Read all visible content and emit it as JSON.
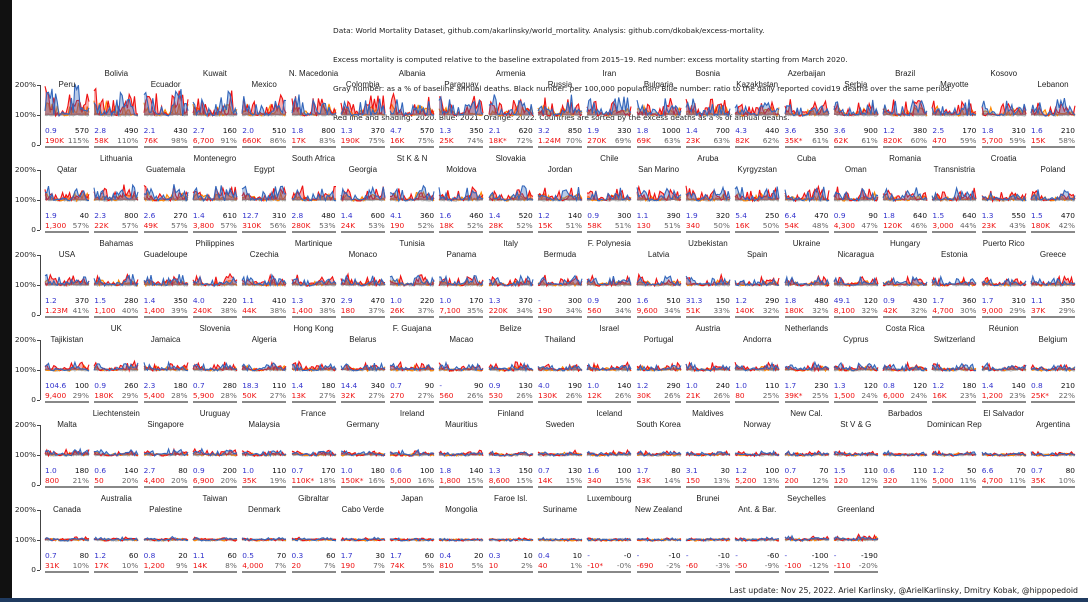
{
  "header": {
    "lines": [
      "Data: World Mortality Dataset, github.com/akarlinsky/world_mortality. Analysis: github.com/dkobak/excess-mortality.",
      "Excess mortality is computed relative to the baseline extrapolated from 2015–19. Red number: excess mortality starting from March 2020.",
      "Gray number: as a % of baseline annual deaths. Black number: per 100,000 population. Blue number: ratio to the daily reported covid19 deaths over the same period.",
      "Red line and shading: 2020. Blue: 2021. Orange: 2022. Countries are sorted by the excess deaths as a % of annual deaths."
    ]
  },
  "footer": "Last update: Nov 25, 2022. Ariel Karlinsky, @ArielKarlinsky, Dmitry Kobak, @hippopedoid",
  "colors": {
    "2020": "#ee1111",
    "2021": "#3366bb",
    "2022": "#ff8800",
    "baseline_years": "#aaaaaa",
    "blue_number": "#3333cc",
    "red_number": "#ee1111"
  },
  "chart_data": {
    "type": "line",
    "yticks": [
      "200%",
      "100%",
      "0"
    ],
    "ylim": [
      0,
      2
    ],
    "series_legend": {
      "red": "2020",
      "blue": "2021",
      "orange": "2022"
    },
    "grid": false,
    "countries": [
      {
        "name": "Peru",
        "blue": "0.9",
        "black": "570",
        "red": "190K",
        "gray": "115%"
      },
      {
        "name": "Bolivia",
        "blue": "2.8",
        "black": "490",
        "red": "58K",
        "gray": "110%"
      },
      {
        "name": "Ecuador",
        "blue": "2.1",
        "black": "430",
        "red": "76K",
        "gray": "98%"
      },
      {
        "name": "Kuwait",
        "blue": "2.7",
        "black": "160",
        "red": "6,700",
        "gray": "91%"
      },
      {
        "name": "Mexico",
        "blue": "2.0",
        "black": "510",
        "red": "660K",
        "gray": "86%"
      },
      {
        "name": "N. Macedonia",
        "blue": "1.8",
        "black": "800",
        "red": "17K",
        "gray": "83%"
      },
      {
        "name": "Colombia",
        "blue": "1.3",
        "black": "370",
        "red": "190K",
        "gray": "75%"
      },
      {
        "name": "Albania",
        "blue": "4.7",
        "black": "570",
        "red": "16K",
        "gray": "75%"
      },
      {
        "name": "Paraguay",
        "blue": "1.3",
        "black": "350",
        "red": "25K",
        "gray": "74%"
      },
      {
        "name": "Armenia",
        "blue": "2.1",
        "black": "620",
        "red": "18K*",
        "gray": "72%"
      },
      {
        "name": "Russia",
        "blue": "3.2",
        "black": "850",
        "red": "1.24M",
        "gray": "70%"
      },
      {
        "name": "Iran",
        "blue": "1.9",
        "black": "330",
        "red": "270K",
        "gray": "69%"
      },
      {
        "name": "Bulgaria",
        "blue": "1.8",
        "black": "1000",
        "red": "69K",
        "gray": "63%"
      },
      {
        "name": "Bosnia",
        "blue": "1.4",
        "black": "700",
        "red": "23K",
        "gray": "63%"
      },
      {
        "name": "Kazakhstan",
        "blue": "4.3",
        "black": "440",
        "red": "82K",
        "gray": "62%"
      },
      {
        "name": "Azerbaijan",
        "blue": "3.6",
        "black": "350",
        "red": "35K*",
        "gray": "61%"
      },
      {
        "name": "Serbia",
        "blue": "3.6",
        "black": "900",
        "red": "62K",
        "gray": "61%"
      },
      {
        "name": "Brazil",
        "blue": "1.2",
        "black": "380",
        "red": "820K",
        "gray": "60%"
      },
      {
        "name": "Mayotte",
        "blue": "2.5",
        "black": "170",
        "red": "470",
        "gray": "59%"
      },
      {
        "name": "Kosovo",
        "blue": "1.8",
        "black": "310",
        "red": "5,700",
        "gray": "59%"
      },
      {
        "name": "Lebanon",
        "blue": "1.6",
        "black": "210",
        "red": "15K",
        "gray": "58%"
      },
      {
        "name": "Qatar",
        "blue": "1.9",
        "black": "40",
        "red": "1,300",
        "gray": "57%"
      },
      {
        "name": "Lithuania",
        "blue": "2.3",
        "black": "800",
        "red": "22K",
        "gray": "57%"
      },
      {
        "name": "Guatemala",
        "blue": "2.6",
        "black": "270",
        "red": "49K",
        "gray": "57%"
      },
      {
        "name": "Montenegro",
        "blue": "1.4",
        "black": "610",
        "red": "3,800",
        "gray": "57%"
      },
      {
        "name": "Egypt",
        "blue": "12.7",
        "black": "310",
        "red": "310K",
        "gray": "56%"
      },
      {
        "name": "South Africa",
        "blue": "2.8",
        "black": "480",
        "red": "280K",
        "gray": "53%"
      },
      {
        "name": "Georgia",
        "blue": "1.4",
        "black": "600",
        "red": "24K",
        "gray": "53%"
      },
      {
        "name": "St K & N",
        "blue": "4.1",
        "black": "360",
        "red": "190",
        "gray": "52%"
      },
      {
        "name": "Moldova",
        "blue": "1.6",
        "black": "460",
        "red": "18K",
        "gray": "52%"
      },
      {
        "name": "Slovakia",
        "blue": "1.4",
        "black": "520",
        "red": "28K",
        "gray": "52%"
      },
      {
        "name": "Jordan",
        "blue": "1.2",
        "black": "140",
        "red": "15K",
        "gray": "51%"
      },
      {
        "name": "Chile",
        "blue": "0.9",
        "black": "300",
        "red": "58K",
        "gray": "51%"
      },
      {
        "name": "San Marino",
        "blue": "1.1",
        "black": "390",
        "red": "130",
        "gray": "51%"
      },
      {
        "name": "Aruba",
        "blue": "1.9",
        "black": "320",
        "red": "340",
        "gray": "50%"
      },
      {
        "name": "Kyrgyzstan",
        "blue": "5.4",
        "black": "250",
        "red": "16K",
        "gray": "50%"
      },
      {
        "name": "Cuba",
        "blue": "6.4",
        "black": "470",
        "red": "54K",
        "gray": "48%"
      },
      {
        "name": "Oman",
        "blue": "0.9",
        "black": "90",
        "red": "4,300",
        "gray": "47%"
      },
      {
        "name": "Romania",
        "blue": "1.8",
        "black": "640",
        "red": "120K",
        "gray": "46%"
      },
      {
        "name": "Transnistria",
        "blue": "1.5",
        "black": "640",
        "red": "3,000",
        "gray": "44%"
      },
      {
        "name": "Croatia",
        "blue": "1.3",
        "black": "550",
        "red": "23K",
        "gray": "43%"
      },
      {
        "name": "Poland",
        "blue": "1.5",
        "black": "470",
        "red": "180K",
        "gray": "42%"
      },
      {
        "name": "USA",
        "blue": "1.2",
        "black": "370",
        "red": "1.23M",
        "gray": "41%"
      },
      {
        "name": "Bahamas",
        "blue": "1.5",
        "black": "280",
        "red": "1,100",
        "gray": "40%"
      },
      {
        "name": "Guadeloupe",
        "blue": "1.4",
        "black": "350",
        "red": "1,400",
        "gray": "39%"
      },
      {
        "name": "Philippines",
        "blue": "4.0",
        "black": "220",
        "red": "240K",
        "gray": "38%"
      },
      {
        "name": "Czechia",
        "blue": "1.1",
        "black": "410",
        "red": "44K",
        "gray": "38%"
      },
      {
        "name": "Martinique",
        "blue": "1.3",
        "black": "370",
        "red": "1,400",
        "gray": "38%"
      },
      {
        "name": "Monaco",
        "blue": "2.9",
        "black": "470",
        "red": "180",
        "gray": "37%"
      },
      {
        "name": "Tunisia",
        "blue": "1.0",
        "black": "220",
        "red": "26K",
        "gray": "37%"
      },
      {
        "name": "Panama",
        "blue": "1.0",
        "black": "170",
        "red": "7,100",
        "gray": "35%"
      },
      {
        "name": "Italy",
        "blue": "1.3",
        "black": "370",
        "red": "220K",
        "gray": "34%"
      },
      {
        "name": "Bermuda",
        "blue": "-",
        "black": "300",
        "red": "190",
        "gray": "34%"
      },
      {
        "name": "F. Polynesia",
        "blue": "0.9",
        "black": "200",
        "red": "560",
        "gray": "34%"
      },
      {
        "name": "Latvia",
        "blue": "1.6",
        "black": "510",
        "red": "9,600",
        "gray": "34%"
      },
      {
        "name": "Uzbekistan",
        "blue": "31.3",
        "black": "150",
        "red": "51K",
        "gray": "33%"
      },
      {
        "name": "Spain",
        "blue": "1.2",
        "black": "290",
        "red": "140K",
        "gray": "32%"
      },
      {
        "name": "Ukraine",
        "blue": "1.8",
        "black": "480",
        "red": "180K",
        "gray": "32%"
      },
      {
        "name": "Nicaragua",
        "blue": "49.1",
        "black": "120",
        "red": "8,100",
        "gray": "32%"
      },
      {
        "name": "Hungary",
        "blue": "0.9",
        "black": "430",
        "red": "42K",
        "gray": "32%"
      },
      {
        "name": "Estonia",
        "blue": "1.7",
        "black": "360",
        "red": "4,700",
        "gray": "30%"
      },
      {
        "name": "Puerto Rico",
        "blue": "1.7",
        "black": "310",
        "red": "9,000",
        "gray": "29%"
      },
      {
        "name": "Greece",
        "blue": "1.1",
        "black": "350",
        "red": "37K",
        "gray": "29%"
      },
      {
        "name": "Tajikistan",
        "blue": "104.6",
        "black": "100",
        "red": "9,400",
        "gray": "29%"
      },
      {
        "name": "UK",
        "blue": "0.9",
        "black": "260",
        "red": "180K",
        "gray": "29%"
      },
      {
        "name": "Jamaica",
        "blue": "2.3",
        "black": "180",
        "red": "5,400",
        "gray": "28%"
      },
      {
        "name": "Slovenia",
        "blue": "0.7",
        "black": "280",
        "red": "5,900",
        "gray": "28%"
      },
      {
        "name": "Algeria",
        "blue": "18.3",
        "black": "110",
        "red": "50K",
        "gray": "27%"
      },
      {
        "name": "Hong Kong",
        "blue": "1.4",
        "black": "180",
        "red": "13K",
        "gray": "27%"
      },
      {
        "name": "Belarus",
        "blue": "14.4",
        "black": "340",
        "red": "32K",
        "gray": "27%"
      },
      {
        "name": "F. Guajana",
        "blue": "0.7",
        "black": "90",
        "red": "270",
        "gray": "27%"
      },
      {
        "name": "Macao",
        "blue": "-",
        "black": "90",
        "red": "560",
        "gray": "26%"
      },
      {
        "name": "Belize",
        "blue": "0.9",
        "black": "130",
        "red": "530",
        "gray": "26%"
      },
      {
        "name": "Thailand",
        "blue": "4.0",
        "black": "190",
        "red": "130K",
        "gray": "26%"
      },
      {
        "name": "Israel",
        "blue": "1.0",
        "black": "140",
        "red": "12K",
        "gray": "26%"
      },
      {
        "name": "Portugal",
        "blue": "1.2",
        "black": "290",
        "red": "30K",
        "gray": "26%"
      },
      {
        "name": "Austria",
        "blue": "1.0",
        "black": "240",
        "red": "21K",
        "gray": "26%"
      },
      {
        "name": "Andorra",
        "blue": "1.0",
        "black": "110",
        "red": "80",
        "gray": "25%"
      },
      {
        "name": "Netherlands",
        "blue": "1.7",
        "black": "230",
        "red": "39K*",
        "gray": "25%"
      },
      {
        "name": "Cyprus",
        "blue": "1.3",
        "black": "120",
        "red": "1,500",
        "gray": "24%"
      },
      {
        "name": "Costa Rica",
        "blue": "0.8",
        "black": "120",
        "red": "6,000",
        "gray": "24%"
      },
      {
        "name": "Switzerland",
        "blue": "1.2",
        "black": "180",
        "red": "16K",
        "gray": "23%"
      },
      {
        "name": "Réunion",
        "blue": "1.4",
        "black": "140",
        "red": "1,200",
        "gray": "23%"
      },
      {
        "name": "Belgium",
        "blue": "0.8",
        "black": "210",
        "red": "25K*",
        "gray": "22%"
      },
      {
        "name": "Malta",
        "blue": "1.0",
        "black": "180",
        "red": "800",
        "gray": "21%"
      },
      {
        "name": "Liechtenstein",
        "blue": "0.6",
        "black": "140",
        "red": "50",
        "gray": "20%"
      },
      {
        "name": "Singapore",
        "blue": "2.7",
        "black": "80",
        "red": "4,400",
        "gray": "20%"
      },
      {
        "name": "Uruguay",
        "blue": "0.9",
        "black": "200",
        "red": "6,900",
        "gray": "20%"
      },
      {
        "name": "Malaysia",
        "blue": "1.0",
        "black": "110",
        "red": "35K",
        "gray": "19%"
      },
      {
        "name": "France",
        "blue": "0.7",
        "black": "170",
        "red": "110K*",
        "gray": "18%"
      },
      {
        "name": "Germany",
        "blue": "1.0",
        "black": "180",
        "red": "150K*",
        "gray": "16%"
      },
      {
        "name": "Ireland",
        "blue": "0.6",
        "black": "100",
        "red": "5,000",
        "gray": "16%"
      },
      {
        "name": "Mauritius",
        "blue": "1.8",
        "black": "140",
        "red": "1,800",
        "gray": "15%"
      },
      {
        "name": "Finland",
        "blue": "1.3",
        "black": "150",
        "red": "8,600",
        "gray": "15%"
      },
      {
        "name": "Sweden",
        "blue": "0.7",
        "black": "130",
        "red": "14K",
        "gray": "15%"
      },
      {
        "name": "Iceland",
        "blue": "1.6",
        "black": "100",
        "red": "340",
        "gray": "15%"
      },
      {
        "name": "South Korea",
        "blue": "1.7",
        "black": "80",
        "red": "43K",
        "gray": "14%"
      },
      {
        "name": "Maldives",
        "blue": "3.1",
        "black": "30",
        "red": "150",
        "gray": "13%"
      },
      {
        "name": "Norway",
        "blue": "1.2",
        "black": "100",
        "red": "5,200",
        "gray": "13%"
      },
      {
        "name": "New Cal.",
        "blue": "0.7",
        "black": "70",
        "red": "200",
        "gray": "12%"
      },
      {
        "name": "St V & G",
        "blue": "1.5",
        "black": "110",
        "red": "120",
        "gray": "12%"
      },
      {
        "name": "Barbados",
        "blue": "0.6",
        "black": "110",
        "red": "320",
        "gray": "11%"
      },
      {
        "name": "Dominican Rep",
        "blue": "1.2",
        "black": "50",
        "red": "5,000",
        "gray": "11%"
      },
      {
        "name": "El Salvador",
        "blue": "6.6",
        "black": "70",
        "red": "4,700",
        "gray": "11%"
      },
      {
        "name": "Argentina",
        "blue": "0.7",
        "black": "80",
        "red": "35K",
        "gray": "10%"
      },
      {
        "name": "Canada",
        "blue": "0.7",
        "black": "80",
        "red": "31K",
        "gray": "10%"
      },
      {
        "name": "Australia",
        "blue": "1.2",
        "black": "60",
        "red": "17K",
        "gray": "10%"
      },
      {
        "name": "Palestine",
        "blue": "0.8",
        "black": "20",
        "red": "1,200",
        "gray": "9%"
      },
      {
        "name": "Taiwan",
        "blue": "1.1",
        "black": "60",
        "red": "14K",
        "gray": "8%"
      },
      {
        "name": "Denmark",
        "blue": "0.5",
        "black": "70",
        "red": "4,000",
        "gray": "7%"
      },
      {
        "name": "Gibraltar",
        "blue": "0.3",
        "black": "60",
        "red": "20",
        "gray": "7%"
      },
      {
        "name": "Cabo Verde",
        "blue": "1.7",
        "black": "30",
        "red": "190",
        "gray": "7%"
      },
      {
        "name": "Japan",
        "blue": "1.7",
        "black": "60",
        "red": "74K",
        "gray": "5%"
      },
      {
        "name": "Mongolia",
        "blue": "0.4",
        "black": "20",
        "red": "810",
        "gray": "5%"
      },
      {
        "name": "Faroe Isl.",
        "blue": "0.3",
        "black": "10",
        "red": "10",
        "gray": "2%"
      },
      {
        "name": "Suriname",
        "blue": "0.4",
        "black": "10",
        "red": "40",
        "gray": "1%"
      },
      {
        "name": "Luxembourg",
        "blue": "-",
        "black": "-0",
        "red": "-10*",
        "gray": "-0%"
      },
      {
        "name": "New Zealand",
        "blue": "-",
        "black": "-10",
        "red": "-690",
        "gray": "-2%"
      },
      {
        "name": "Brunei",
        "blue": "-",
        "black": "-10",
        "red": "-60",
        "gray": "-3%"
      },
      {
        "name": "Ant. & Bar.",
        "blue": "-",
        "black": "-60",
        "red": "-50",
        "gray": "-9%"
      },
      {
        "name": "Seychelles",
        "blue": "-",
        "black": "-100",
        "red": "-100",
        "gray": "-12%"
      },
      {
        "name": "Greenland",
        "blue": "-",
        "black": "-190",
        "red": "-110",
        "gray": "-20%"
      }
    ]
  }
}
